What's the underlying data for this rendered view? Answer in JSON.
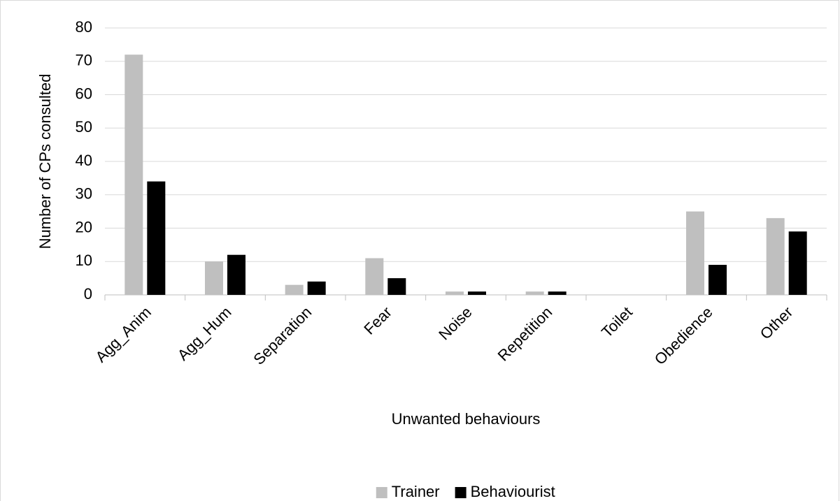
{
  "chart_data": {
    "type": "bar",
    "x_label": "Unwanted behaviours",
    "y_label": "Number of CPs consulted",
    "categories": [
      "Agg_Anim",
      "Agg_Hum",
      "Separation",
      "Fear",
      "Noise",
      "Repetition",
      "Toilet",
      "Obedience",
      "Other"
    ],
    "series": [
      {
        "name": "Trainer",
        "color": "#bfbfbf",
        "values": [
          72,
          10,
          3,
          11,
          1,
          1,
          0,
          25,
          23
        ]
      },
      {
        "name": "Behaviourist",
        "color": "#000000",
        "values": [
          34,
          12,
          4,
          5,
          1,
          1,
          0,
          9,
          19
        ]
      }
    ],
    "ylim": [
      0,
      80
    ],
    "yticks": [
      0,
      10,
      20,
      30,
      40,
      50,
      60,
      70,
      80
    ],
    "grid": true,
    "legend": "bottom"
  }
}
